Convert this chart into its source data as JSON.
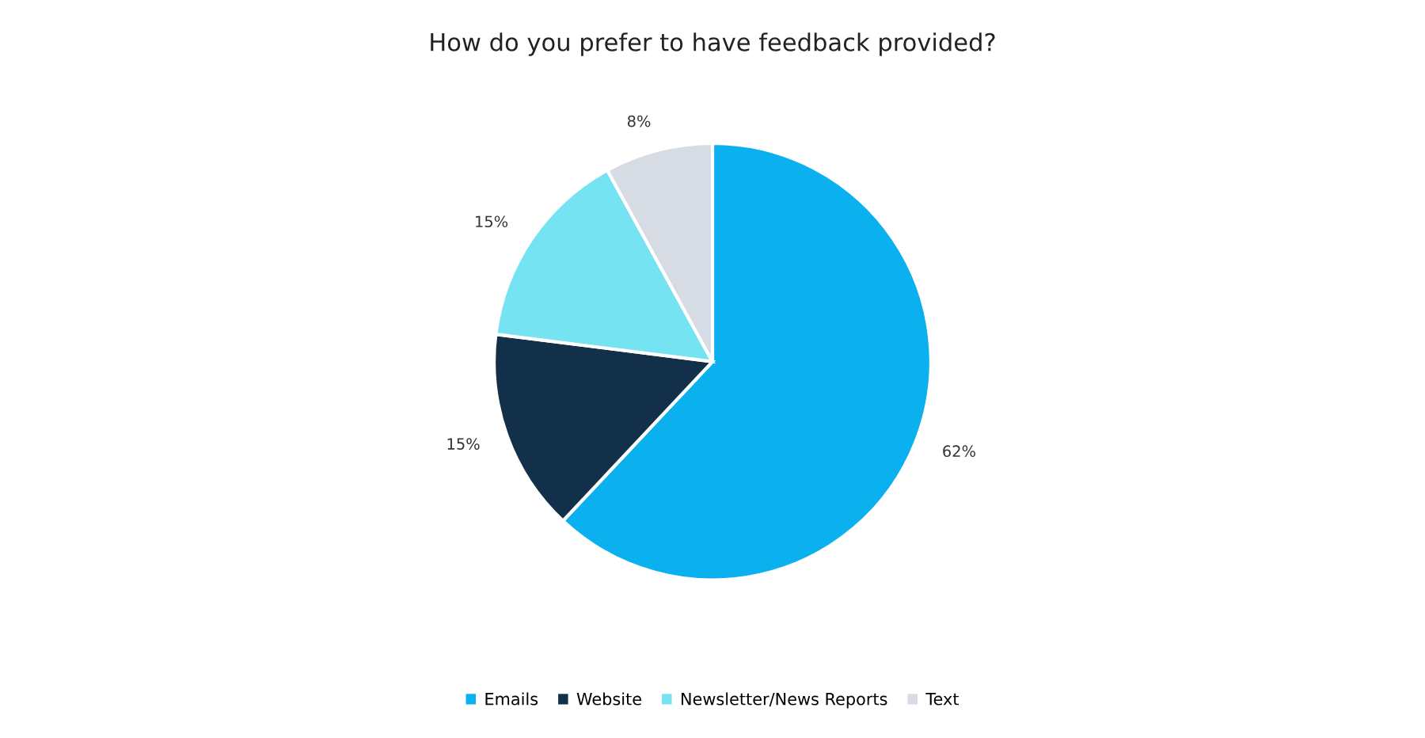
{
  "chart_data": {
    "type": "pie",
    "title": "How do you prefer to have feedback provided?",
    "categories": [
      "Emails",
      "Website",
      "Newsletter/News Reports",
      "Text"
    ],
    "values": [
      62,
      15,
      15,
      8
    ],
    "value_labels": [
      "62%",
      "15%",
      "15%",
      "8%"
    ],
    "colors": [
      "#0bb0ef",
      "#12304a",
      "#76e3f3",
      "#d6dbe4"
    ],
    "legend": "bottom"
  }
}
